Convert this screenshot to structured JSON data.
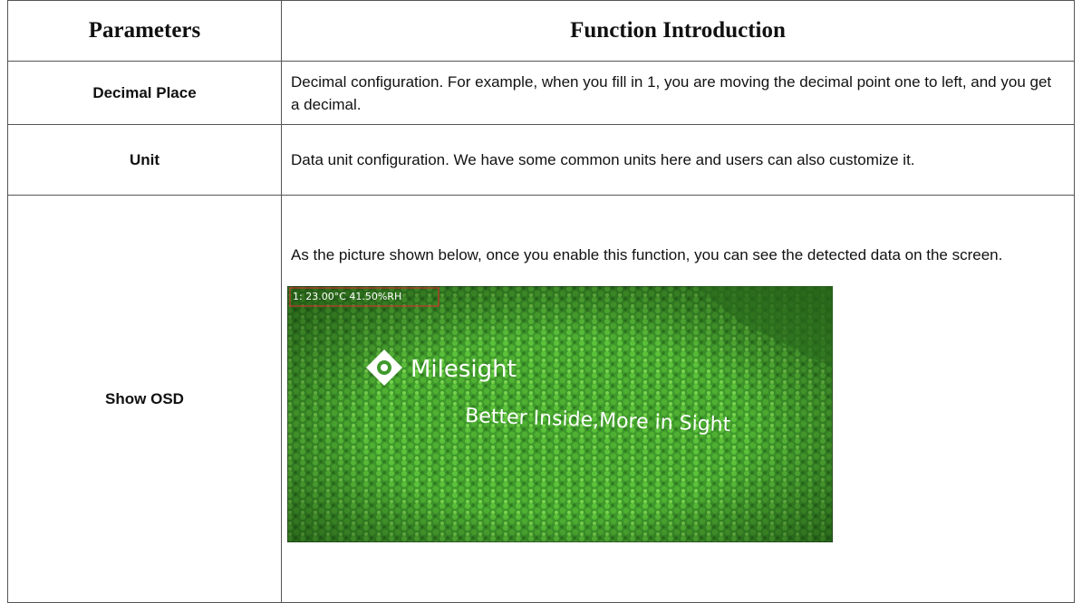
{
  "table": {
    "header": [
      "Parameters",
      "Function Introduction"
    ],
    "rows": [
      [
        "Decimal Place",
        "Decimal configuration. For example, when you fill in 1, you are moving the decimal point one to left, and you get a decimal."
      ],
      [
        "Unit",
        "Data unit configuration. We have some common units here and users can also customize it."
      ],
      [
        "Show OSD",
        "As the picture shown below, once you enable this function, you can see the detected data on the screen."
      ]
    ]
  },
  "image": {
    "osd": "1: 23.00°C  41.50%RH",
    "logo": "Milesight",
    "slogan": "Better Inside,More in Sight"
  }
}
